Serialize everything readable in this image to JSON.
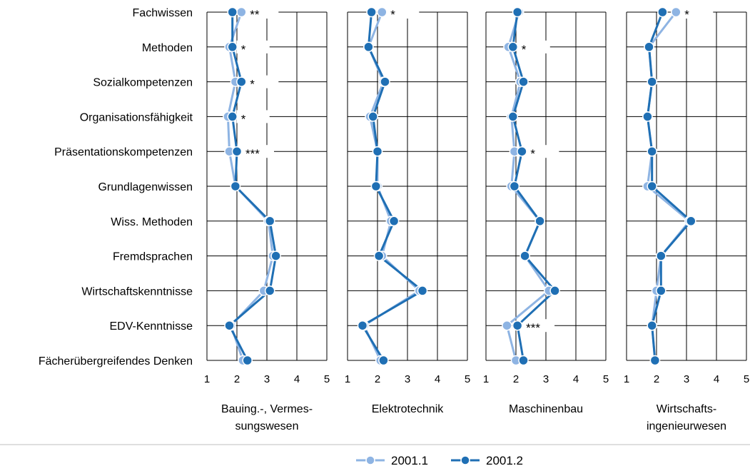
{
  "chart_data": {
    "type": "line",
    "categories": [
      "Fachwissen",
      "Methoden",
      "Sozialkompetenzen",
      "Organisationsfähigkeit",
      "Präsentationskompetenzen",
      "Grundlagenwissen",
      "Wiss. Methoden",
      "Fremdsprachen",
      "Wirtschaftskenntnisse",
      "EDV-Kenntnisse",
      "Fächerübergreifendes Denken"
    ],
    "xlim": [
      1,
      5
    ],
    "x_ticks": [
      "1",
      "2",
      "3",
      "4",
      "5"
    ],
    "grid": true,
    "legend": "bottom-center",
    "legend_entries": [
      "2001.1",
      "2001.2"
    ],
    "colors": {
      "2001.1": "#8EB4E3",
      "2001.2": "#1F6FB4"
    },
    "panels": [
      {
        "title": [
          "Bauing.-, Vermes-",
          "sungswesen"
        ],
        "series": [
          {
            "name": "2001.1",
            "values": [
              2.15,
              1.75,
              1.95,
              1.7,
              1.75,
              1.95,
              3.05,
              3.2,
              2.9,
              1.8,
              2.2
            ]
          },
          {
            "name": "2001.2",
            "values": [
              1.85,
              1.85,
              2.15,
              1.85,
              2.0,
              1.95,
              3.1,
              3.3,
              3.1,
              1.75,
              2.35
            ]
          }
        ],
        "annotations": [
          {
            "category": "Fachwissen",
            "text": "**"
          },
          {
            "category": "Methoden",
            "text": "*"
          },
          {
            "category": "Sozialkompetenzen",
            "text": "*"
          },
          {
            "category": "Organisationsfähigkeit",
            "text": "*"
          },
          {
            "category": "Präsentationskompetenzen",
            "text": "***"
          }
        ]
      },
      {
        "title": [
          "Elektrotechnik"
        ],
        "series": [
          {
            "name": "2001.1",
            "values": [
              2.15,
              1.7,
              2.2,
              1.75,
              2.0,
              2.0,
              2.45,
              2.15,
              3.4,
              1.55,
              2.1
            ]
          },
          {
            "name": "2001.2",
            "values": [
              1.8,
              1.7,
              2.25,
              1.85,
              2.0,
              1.95,
              2.55,
              2.05,
              3.5,
              1.5,
              2.2
            ]
          }
        ],
        "annotations": [
          {
            "category": "Fachwissen",
            "text": "*"
          }
        ]
      },
      {
        "title": [
          "Maschinenbau"
        ],
        "series": [
          {
            "name": "2001.1",
            "values": [
              2.1,
              1.75,
              2.15,
              1.85,
              1.95,
              1.85,
              2.8,
              2.3,
              3.1,
              1.7,
              2.0
            ]
          },
          {
            "name": "2001.2",
            "values": [
              2.05,
              1.9,
              2.25,
              1.9,
              2.2,
              1.95,
              2.8,
              2.3,
              3.3,
              2.05,
              2.25
            ]
          }
        ],
        "annotations": [
          {
            "category": "Methoden",
            "text": "*"
          },
          {
            "category": "Präsentationskompetenzen",
            "text": "*"
          },
          {
            "category": "EDV-Kenntnisse",
            "text": "***"
          }
        ]
      },
      {
        "title": [
          "Wirtschafts-",
          "ingenieurwesen"
        ],
        "series": [
          {
            "name": "2001.1",
            "values": [
              2.65,
              1.75,
              1.85,
              1.7,
              1.85,
              1.7,
              3.1,
              2.15,
              2.0,
              1.85,
              1.95
            ]
          },
          {
            "name": "2001.2",
            "values": [
              2.2,
              1.75,
              1.85,
              1.7,
              1.85,
              1.85,
              3.15,
              2.15,
              2.15,
              1.85,
              1.95
            ]
          }
        ],
        "annotations": [
          {
            "category": "Fachwissen",
            "text": "*"
          }
        ]
      }
    ]
  }
}
